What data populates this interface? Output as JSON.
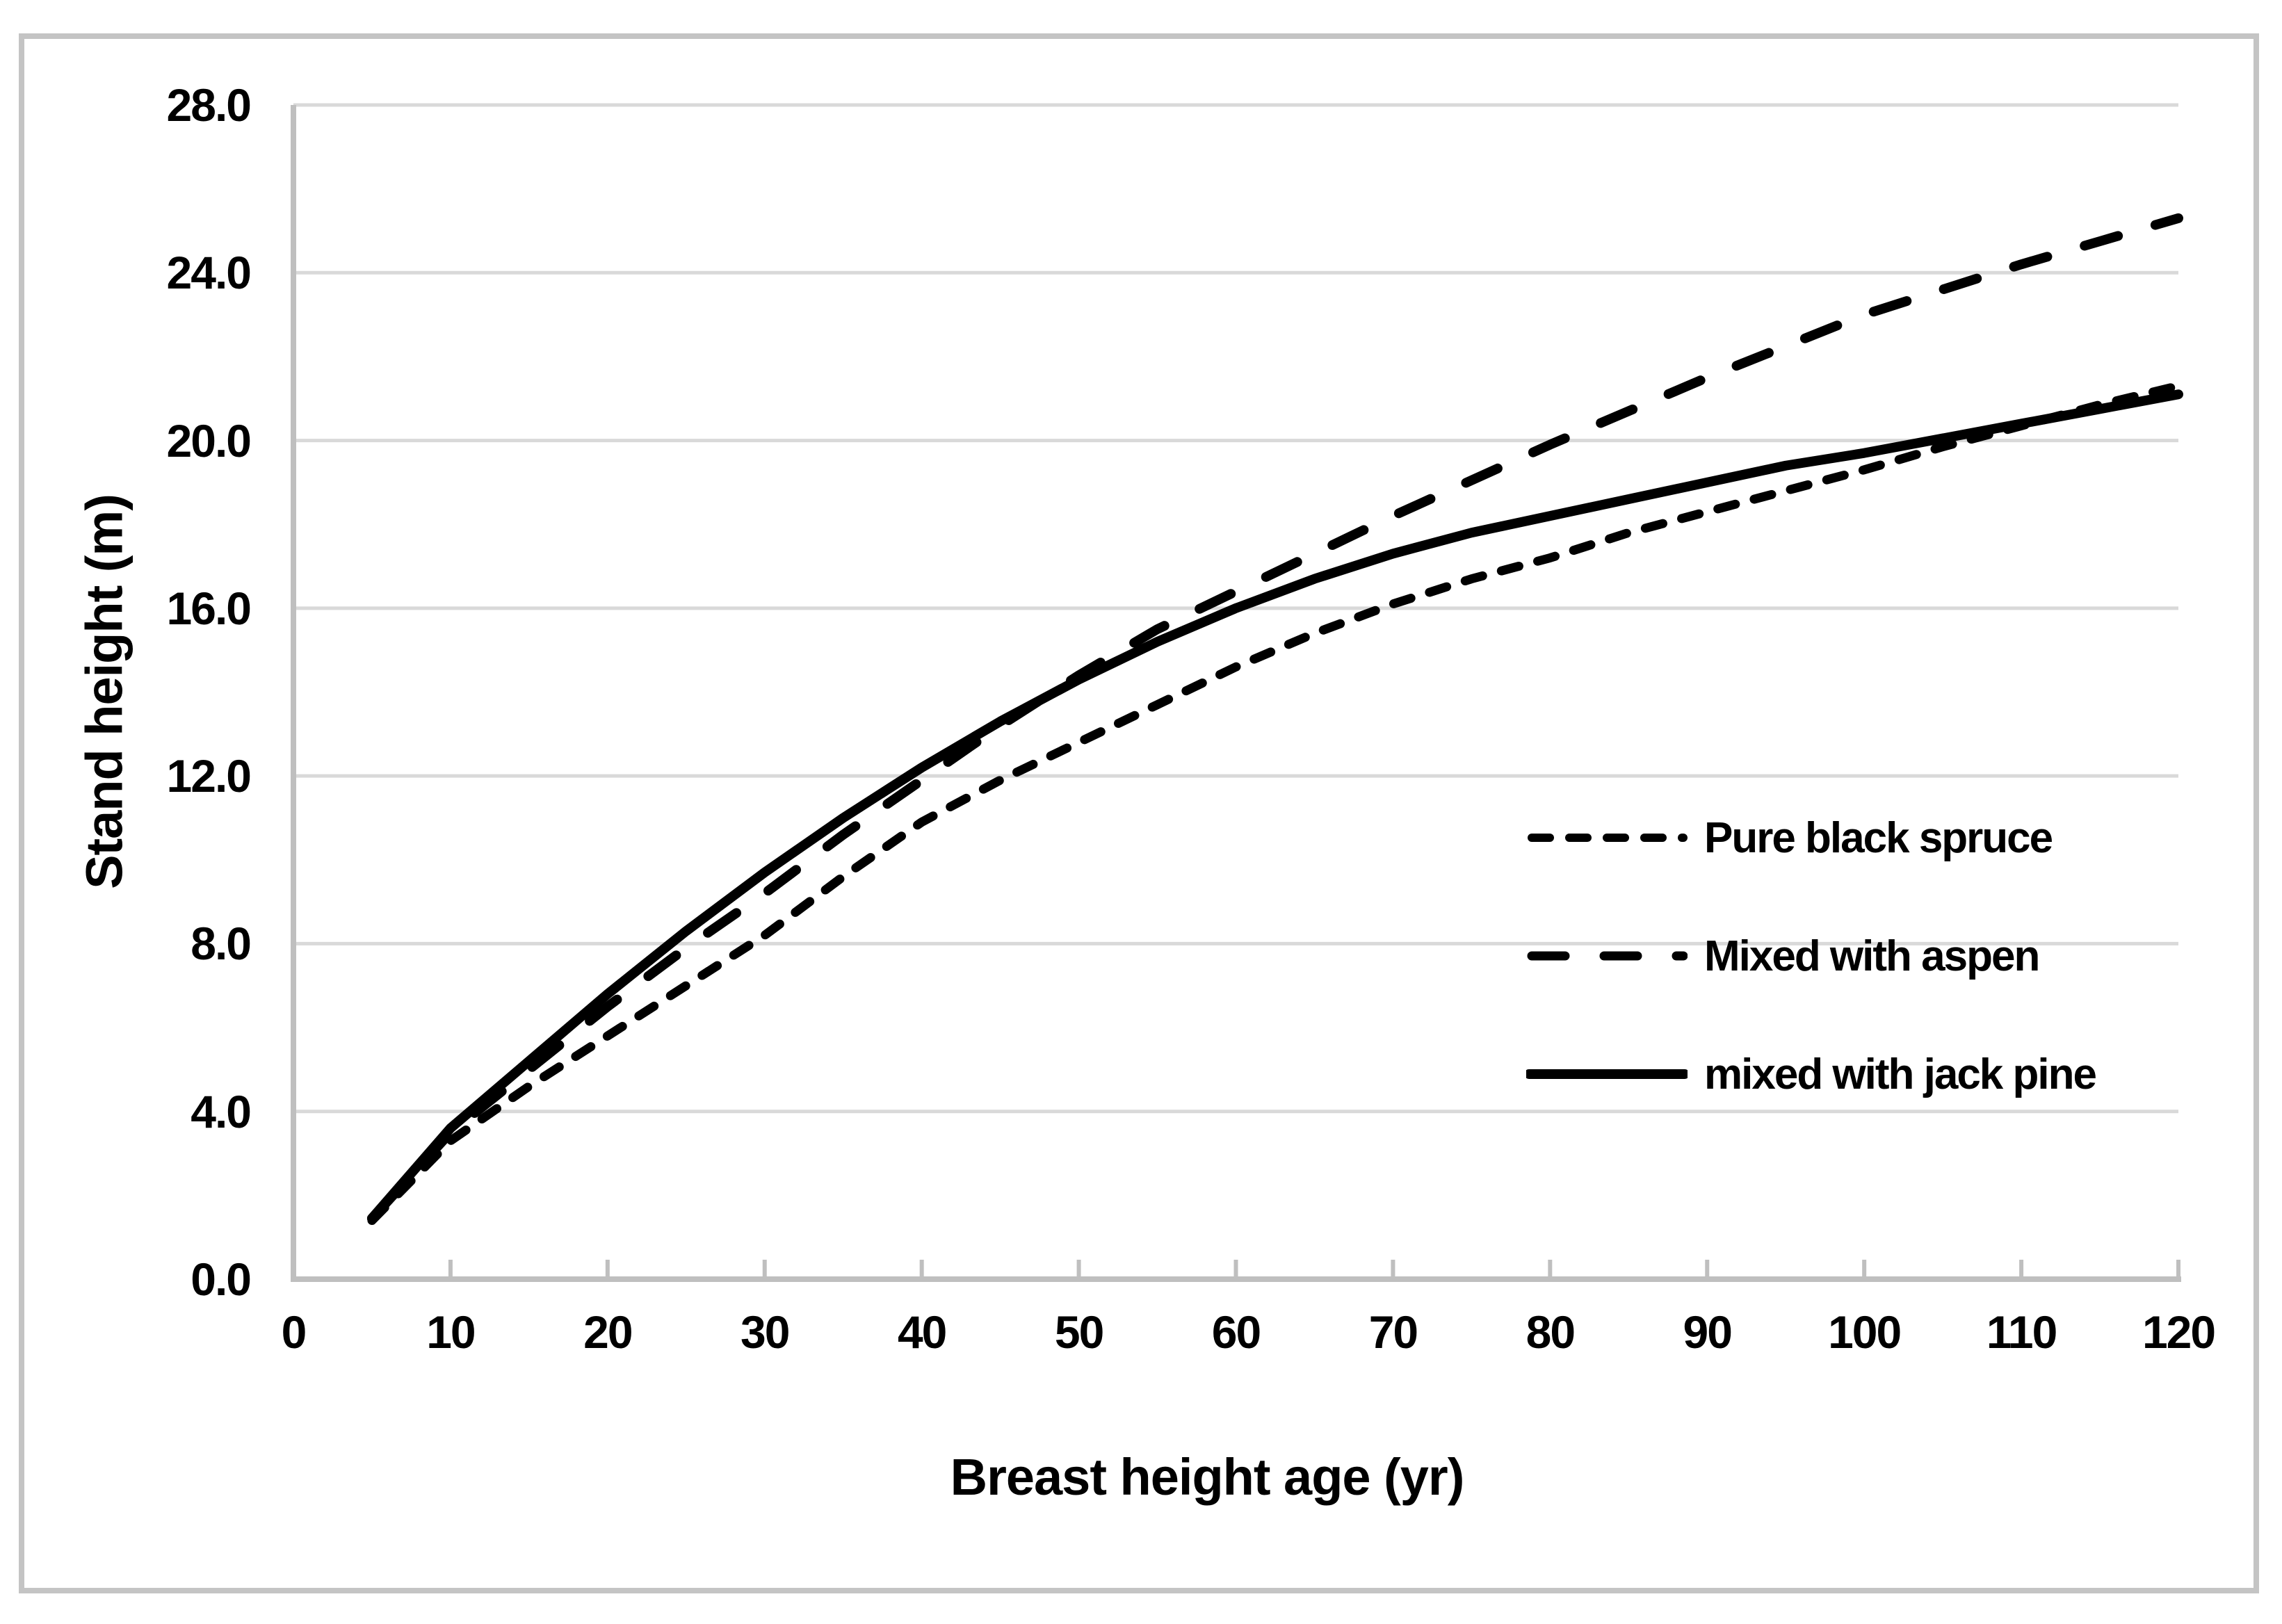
{
  "figure": {
    "background": "#ffffff",
    "border_color": "#c4c4c4",
    "axis_color": "#bfbfbf",
    "grid_color": "#d9d9d9",
    "line_color": "#000000"
  },
  "chart_data": {
    "type": "line",
    "title": "",
    "xlabel": "Breast height age (yr)",
    "ylabel": "Stand height (m)",
    "xlim": [
      0,
      120
    ],
    "ylim": [
      0,
      28
    ],
    "x_ticks": [
      0,
      10,
      20,
      30,
      40,
      50,
      60,
      70,
      80,
      90,
      100,
      110,
      120
    ],
    "y_tick_labels": [
      "0.0",
      "4.0",
      "8.0",
      "12.0",
      "16.0",
      "20.0",
      "24.0",
      "28.0"
    ],
    "grid": "horizontal-only",
    "legend_position": "inside-right",
    "x": [
      5,
      10,
      15,
      20,
      25,
      30,
      35,
      40,
      45,
      50,
      55,
      60,
      65,
      70,
      75,
      80,
      85,
      90,
      95,
      100,
      105,
      110,
      115,
      120
    ],
    "series": [
      {
        "name": "Pure black spruce",
        "style": "short-dash",
        "color": "#000000",
        "values": [
          1.4,
          3.3,
          4.6,
          5.8,
          7.0,
          8.2,
          9.6,
          10.9,
          11.9,
          12.8,
          13.7,
          14.6,
          15.4,
          16.1,
          16.7,
          17.2,
          17.8,
          18.3,
          18.8,
          19.3,
          19.85,
          20.35,
          20.85,
          21.3
        ]
      },
      {
        "name": "Mixed with aspen",
        "style": "long-dash",
        "color": "#000000",
        "values": [
          1.45,
          3.5,
          5.0,
          6.5,
          7.9,
          9.2,
          10.6,
          11.9,
          13.2,
          14.4,
          15.5,
          16.4,
          17.3,
          18.2,
          19.05,
          19.9,
          20.7,
          21.5,
          22.25,
          23.0,
          23.6,
          24.2,
          24.75,
          25.3
        ]
      },
      {
        "name": "mixed with jack pine",
        "style": "solid",
        "color": "#000000",
        "values": [
          1.45,
          3.6,
          5.2,
          6.8,
          8.3,
          9.7,
          11.0,
          12.2,
          13.3,
          14.3,
          15.2,
          16.0,
          16.7,
          17.3,
          17.8,
          18.2,
          18.6,
          19.0,
          19.4,
          19.7,
          20.05,
          20.4,
          20.75,
          21.1
        ]
      }
    ]
  }
}
